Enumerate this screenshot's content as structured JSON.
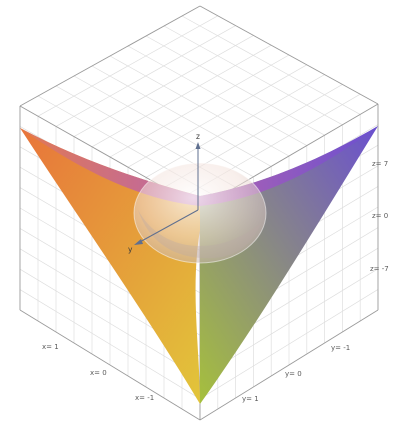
{
  "chart_data": {
    "type": "surface",
    "title": "",
    "surface": "monkey-saddle-like surface z = x^3 - 3 x y^2 with a translucent sphere at the origin",
    "axes": {
      "x": {
        "label": "x",
        "ticks": [
          "x= 1",
          "x= 0",
          "x= -1"
        ],
        "range": [
          -1,
          1
        ]
      },
      "y": {
        "label": "y",
        "ticks": [
          "y= -1",
          "y= 0",
          "y= 1"
        ],
        "range": [
          -1,
          1
        ]
      },
      "z": {
        "label": "z",
        "ticks": [
          "z= 7",
          "z= 0",
          "z= -7"
        ],
        "range": [
          -7,
          7
        ]
      }
    },
    "grid": true,
    "colors": {
      "left_corner": "#e8743a",
      "bottom_corner": "#e2c53a",
      "right_corner": "#6a4fd0",
      "center": "#a6c03c",
      "frame": "#9a9a9a",
      "grid": "#dedede"
    }
  }
}
